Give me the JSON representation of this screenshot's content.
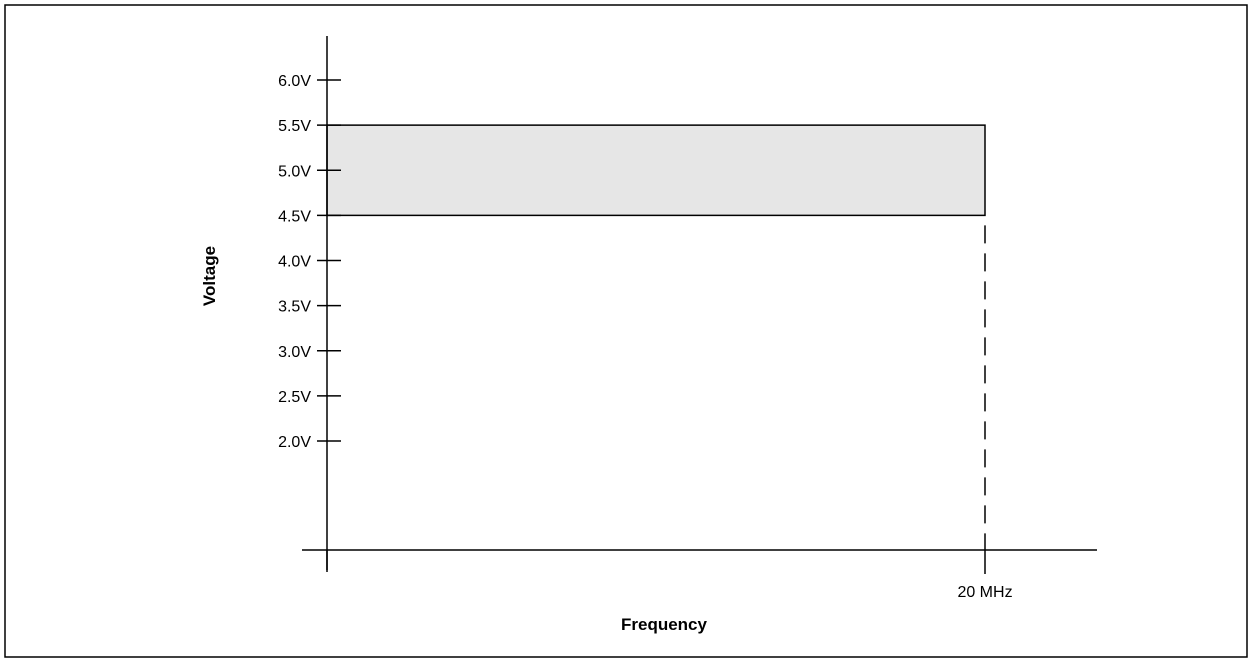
{
  "chart_data": {
    "type": "area",
    "xlabel": "Frequency",
    "ylabel": "Voltage",
    "y_ticks": [
      {
        "value": 6.0,
        "label": "6.0V"
      },
      {
        "value": 5.5,
        "label": "5.5V"
      },
      {
        "value": 5.0,
        "label": "5.0V"
      },
      {
        "value": 4.5,
        "label": "4.5V"
      },
      {
        "value": 4.0,
        "label": "4.0V"
      },
      {
        "value": 3.5,
        "label": "3.5V"
      },
      {
        "value": 3.0,
        "label": "3.0V"
      },
      {
        "value": 2.5,
        "label": "2.5V"
      },
      {
        "value": 2.0,
        "label": "2.0V"
      }
    ],
    "x_ticks": [
      {
        "value": 20,
        "label": "20 MHz"
      }
    ],
    "x_unit": "MHz",
    "xlim": [
      0,
      20
    ],
    "ylim_visible": [
      2.0,
      6.0
    ],
    "regions": [
      {
        "x": [
          0,
          20
        ],
        "y": [
          4.5,
          5.5
        ],
        "fill": "#e6e6e6"
      }
    ],
    "guide_lines": [
      {
        "x": 20,
        "style": "dashed",
        "from_y": 4.5,
        "to": "x-axis"
      }
    ],
    "grid": false,
    "legend": "none"
  }
}
